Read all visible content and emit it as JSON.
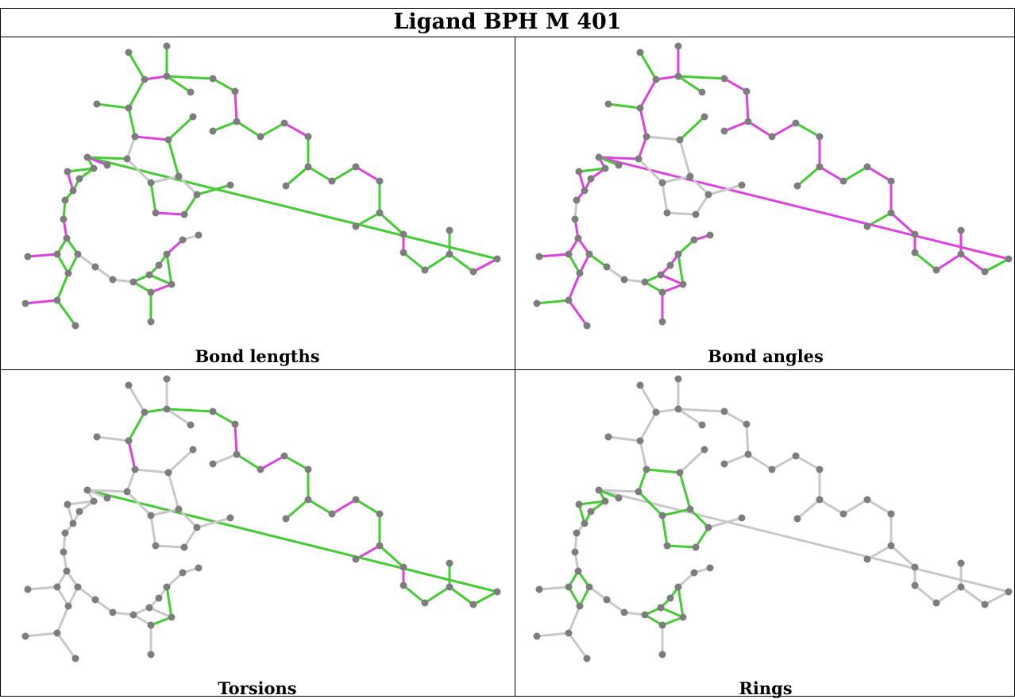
{
  "title": "Ligand BPH M 401",
  "panels": [
    {
      "caption": "Bond lengths",
      "variant": "bond_lengths"
    },
    {
      "caption": "Bond angles",
      "variant": "bond_angles"
    },
    {
      "caption": "Torsions",
      "variant": "torsions"
    },
    {
      "caption": "Rings",
      "variant": "rings"
    }
  ],
  "colors": {
    "good": "#44cc33",
    "outlier": "#e040e0",
    "neutral": "#c8c8c8",
    "atom": "#7d7d7d",
    "border": "#000000"
  }
}
